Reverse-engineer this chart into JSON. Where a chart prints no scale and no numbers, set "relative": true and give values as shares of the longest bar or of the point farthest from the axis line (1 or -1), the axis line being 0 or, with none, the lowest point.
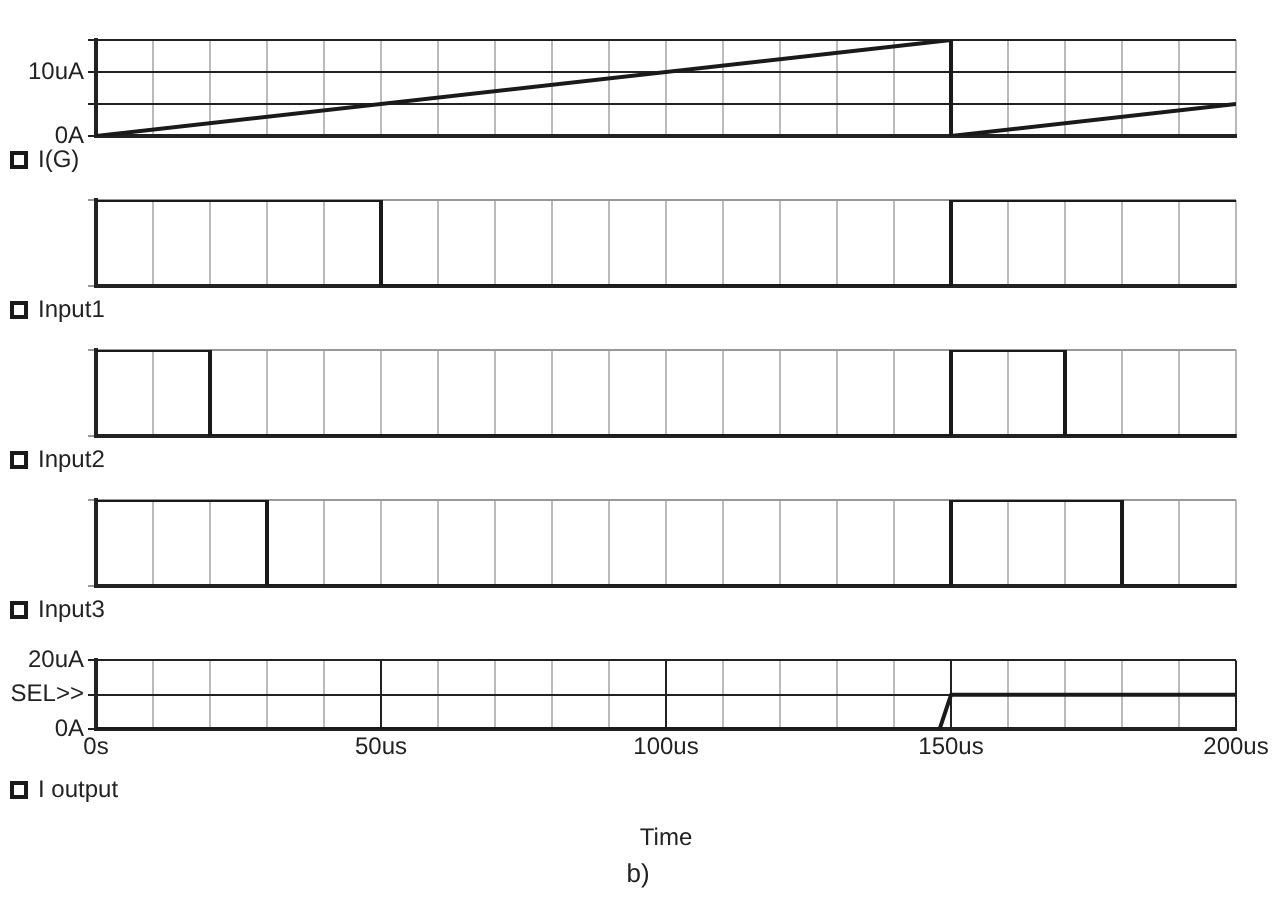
{
  "chart_data": [
    {
      "type": "line",
      "x": [
        0,
        150,
        150,
        200
      ],
      "series": [
        {
          "name": "I(G)",
          "color": "#1a1a1a",
          "values": [
            0,
            15,
            0,
            5
          ]
        }
      ],
      "xlim": [
        0,
        200
      ],
      "xticks": [
        0,
        {
          "value": 10,
          "label": null
        },
        {
          "value": 20,
          "label": null
        },
        {
          "value": 30,
          "label": null
        },
        {
          "value": 40,
          "label": null
        },
        {
          "value": 50,
          "label": null
        },
        {
          "value": 60,
          "label": null
        },
        {
          "value": 70,
          "label": null
        },
        {
          "value": 80,
          "label": null
        },
        {
          "value": 90,
          "label": null
        },
        {
          "value": 100,
          "label": null
        },
        {
          "value": 110,
          "label": null
        },
        {
          "value": 120,
          "label": null
        },
        {
          "value": 130,
          "label": null
        },
        {
          "value": 140,
          "label": null
        },
        {
          "value": 150,
          "label": null
        },
        {
          "value": 160,
          "label": null
        },
        {
          "value": 170,
          "label": null
        },
        {
          "value": 180,
          "label": null
        },
        {
          "value": 190,
          "label": null
        },
        {
          "value": 200,
          "label": null
        }
      ],
      "ylim": [
        0,
        15
      ],
      "yticks": [
        {
          "value": 0,
          "label": "0A"
        },
        {
          "value": 5,
          "label": null
        },
        {
          "value": 10,
          "label": "10uA"
        },
        {
          "value": 15,
          "label": null
        }
      ],
      "grid": true,
      "legend": "bottom",
      "tick_labels": "y"
    },
    {
      "type": "step",
      "relative": true,
      "x": [
        0,
        50,
        150,
        200
      ],
      "series": [
        {
          "name": "Input1",
          "color": "#1a1a1a",
          "values": [
            1,
            0,
            1,
            1
          ]
        }
      ],
      "xlim": [
        0,
        200
      ],
      "xticks": [
        {
          "value": 0,
          "label": null
        },
        {
          "value": 10,
          "label": null
        },
        {
          "value": 20,
          "label": null
        },
        {
          "value": 30,
          "label": null
        },
        {
          "value": 40,
          "label": null
        },
        {
          "value": 50,
          "label": null
        },
        {
          "value": 60,
          "label": null
        },
        {
          "value": 70,
          "label": null
        },
        {
          "value": 80,
          "label": null
        },
        {
          "value": 90,
          "label": null
        },
        {
          "value": 100,
          "label": null
        },
        {
          "value": 110,
          "label": null
        },
        {
          "value": 120,
          "label": null
        },
        {
          "value": 130,
          "label": null
        },
        {
          "value": 140,
          "label": null
        },
        {
          "value": 150,
          "label": null
        },
        {
          "value": 160,
          "label": null
        },
        {
          "value": 170,
          "label": null
        },
        {
          "value": 180,
          "label": null
        },
        {
          "value": 190,
          "label": null
        },
        {
          "value": 200,
          "label": null
        }
      ],
      "grid": true,
      "legend": "bottom",
      "tick_labels": false
    },
    {
      "type": "step",
      "relative": true,
      "x": [
        0,
        20,
        150,
        170,
        200
      ],
      "series": [
        {
          "name": "Input2",
          "color": "#1a1a1a",
          "values": [
            1,
            0,
            1,
            0,
            0
          ]
        }
      ],
      "xlim": [
        0,
        200
      ],
      "xticks": [
        {
          "value": 0,
          "label": null
        },
        {
          "value": 10,
          "label": null
        },
        {
          "value": 20,
          "label": null
        },
        {
          "value": 30,
          "label": null
        },
        {
          "value": 40,
          "label": null
        },
        {
          "value": 50,
          "label": null
        },
        {
          "value": 60,
          "label": null
        },
        {
          "value": 70,
          "label": null
        },
        {
          "value": 80,
          "label": null
        },
        {
          "value": 90,
          "label": null
        },
        {
          "value": 100,
          "label": null
        },
        {
          "value": 110,
          "label": null
        },
        {
          "value": 120,
          "label": null
        },
        {
          "value": 130,
          "label": null
        },
        {
          "value": 140,
          "label": null
        },
        {
          "value": 150,
          "label": null
        },
        {
          "value": 160,
          "label": null
        },
        {
          "value": 170,
          "label": null
        },
        {
          "value": 180,
          "label": null
        },
        {
          "value": 190,
          "label": null
        },
        {
          "value": 200,
          "label": null
        }
      ],
      "grid": true,
      "legend": "bottom",
      "tick_labels": false
    },
    {
      "type": "step",
      "relative": true,
      "x": [
        0,
        30,
        150,
        180,
        200
      ],
      "series": [
        {
          "name": "Input3",
          "color": "#1a1a1a",
          "values": [
            1,
            0,
            1,
            0,
            0
          ]
        }
      ],
      "xlim": [
        0,
        200
      ],
      "xticks": [
        {
          "value": 0,
          "label": null
        },
        {
          "value": 10,
          "label": null
        },
        {
          "value": 20,
          "label": null
        },
        {
          "value": 30,
          "label": null
        },
        {
          "value": 40,
          "label": null
        },
        {
          "value": 50,
          "label": null
        },
        {
          "value": 60,
          "label": null
        },
        {
          "value": 70,
          "label": null
        },
        {
          "value": 80,
          "label": null
        },
        {
          "value": 90,
          "label": null
        },
        {
          "value": 100,
          "label": null
        },
        {
          "value": 110,
          "label": null
        },
        {
          "value": 120,
          "label": null
        },
        {
          "value": 130,
          "label": null
        },
        {
          "value": 140,
          "label": null
        },
        {
          "value": 150,
          "label": null
        },
        {
          "value": 160,
          "label": null
        },
        {
          "value": 170,
          "label": null
        },
        {
          "value": 180,
          "label": null
        },
        {
          "value": 190,
          "label": null
        },
        {
          "value": 200,
          "label": null
        }
      ],
      "grid": true,
      "legend": "bottom",
      "tick_labels": false
    },
    {
      "type": "line",
      "x": [
        0,
        148,
        150,
        200
      ],
      "series": [
        {
          "name": "I output",
          "color": "#1a1a1a",
          "values": [
            0,
            0,
            10,
            10
          ]
        }
      ],
      "xlim": [
        0,
        200
      ],
      "xticks": [
        {
          "value": 0,
          "label": "0s"
        },
        {
          "value": 10,
          "label": null
        },
        {
          "value": 20,
          "label": null
        },
        {
          "value": 30,
          "label": null
        },
        {
          "value": 40,
          "label": null
        },
        {
          "value": 50,
          "label": "50us"
        },
        {
          "value": 60,
          "label": null
        },
        {
          "value": 70,
          "label": null
        },
        {
          "value": 80,
          "label": null
        },
        {
          "value": 90,
          "label": null
        },
        {
          "value": 100,
          "label": "100us"
        },
        {
          "value": 110,
          "label": null
        },
        {
          "value": 120,
          "label": null
        },
        {
          "value": 130,
          "label": null
        },
        {
          "value": 140,
          "label": null
        },
        {
          "value": 150,
          "label": "150us"
        },
        {
          "value": 160,
          "label": null
        },
        {
          "value": 170,
          "label": null
        },
        {
          "value": 180,
          "label": null
        },
        {
          "value": 190,
          "label": null
        },
        {
          "value": 200,
          "label": "200us"
        }
      ],
      "ylim": [
        0,
        20
      ],
      "yticks": [
        {
          "value": 0,
          "label": "0A"
        },
        {
          "value": 10,
          "label": "SEL>>"
        },
        {
          "value": 20,
          "label": "20uA"
        }
      ],
      "xlabel": "Time",
      "grid": true,
      "legend": "bottom",
      "annotations": [
        "b)"
      ]
    }
  ]
}
